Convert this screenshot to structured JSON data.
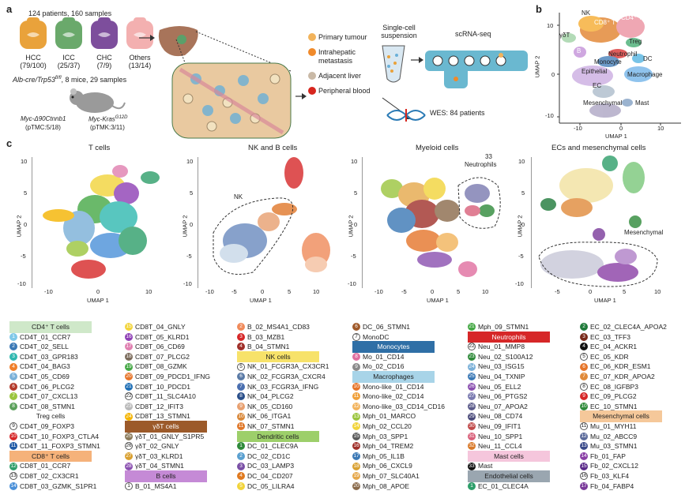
{
  "panel_letters": {
    "a": "a",
    "b": "b",
    "c": "c"
  },
  "panel_a": {
    "cohort": "124 patients, 160 samples",
    "organs": [
      {
        "name": "HCC",
        "count": "(79/100)",
        "color": "#e9a23b"
      },
      {
        "name": "ICC",
        "count": "(25/37)",
        "color": "#6aa96b"
      },
      {
        "name": "CHC",
        "count": "(7/9)",
        "color": "#7d4e9c"
      },
      {
        "name": "Others",
        "count": "(13/14)",
        "color": "#f3b0b0"
      }
    ],
    "mouse_model": "Alb-cre/Trp53",
    "mouse_model_sup": "fl/fl",
    "mouse_model_rest": ", 8 mice, 29 samples",
    "mouse_left": "Myc-Δ90Ctnnb1",
    "mouse_left_sub": "(pTMC:5/18)",
    "mouse_right": "Myc-Kras",
    "mouse_right_sup": "G12D",
    "mouse_right_sub": "(pTMK:3/11)",
    "sample_types": [
      {
        "label": "Primary tumour",
        "color": "#f2b35b"
      },
      {
        "label": "Intrahepatic",
        "label2": "metastasis",
        "color": "#f08a2a"
      },
      {
        "label": "Adjacent liver",
        "color": "#c9b9a6"
      },
      {
        "label": "Peripheral blood",
        "color": "#d7261e"
      }
    ],
    "suspension": "Single-cell",
    "suspension2": "suspension",
    "scrna": "scRNA-seq",
    "wes": "WES: 84 patients"
  },
  "panel_b": {
    "x_label": "UMAP 1",
    "y_label": "UMAP 2",
    "x_ticks": [
      "-10",
      "0",
      "10"
    ],
    "y_ticks": [
      "10",
      "0",
      "-10"
    ],
    "labels": [
      "NK",
      "CD8⁺ T",
      "CD4⁺ T",
      "γδT",
      "Treg",
      "B",
      "Neutrophil",
      "Monocyte",
      "DC",
      "Epithelial",
      "Macrophage",
      "EC",
      "Mesenchymal",
      "Mast"
    ]
  },
  "panel_c": [
    {
      "title": "T cells",
      "x_ticks": [
        "-10",
        "0",
        "10"
      ],
      "y_ticks": [
        "10",
        "5",
        "0",
        "-5",
        "-10"
      ]
    },
    {
      "title": "NK and B cells",
      "x_ticks": [
        "-10",
        "-5",
        "0",
        "5",
        "10"
      ],
      "y_ticks": [
        "10",
        "5",
        "0",
        "-5",
        "-10"
      ],
      "annot": "NK"
    },
    {
      "title": "Myeloid cells",
      "x_ticks": [
        "-10",
        "-5",
        "0",
        "5",
        "10"
      ],
      "y_ticks": [
        "10",
        "5",
        "0",
        "-5",
        "-10"
      ],
      "annot": "Neutrophils",
      "annot2": "33"
    },
    {
      "title": "ECs and mesenchymal cells",
      "x_ticks": [
        "-5",
        "0",
        "5",
        "10"
      ],
      "y_ticks": [
        "10",
        "5",
        "0",
        "-5",
        "-10"
      ],
      "annot": "Mesenchymal"
    }
  ],
  "umap_x": "UMAP 1",
  "umap_y": "UMAP 2",
  "legend_columns": [
    [
      {
        "head": "CD4⁺ T cells",
        "bg": "#cfe8c9"
      },
      {
        "n": "1",
        "t": "CD4T_01_CCR7",
        "c": "#7fc8e8"
      },
      {
        "n": "2",
        "t": "CD4T_02_SELL",
        "c": "#3a78b5"
      },
      {
        "n": "3",
        "t": "CD4T_03_GPR183",
        "c": "#2fb8b0"
      },
      {
        "n": "4",
        "t": "CD4T_04_BAG3",
        "c": "#f07f2a"
      },
      {
        "n": "5",
        "t": "CD4T_05_CD69",
        "c": "#7ab0d8"
      },
      {
        "n": "6",
        "t": "CD4T_06_PLCG2",
        "c": "#b33a2a"
      },
      {
        "n": "7",
        "t": "CD4T_07_CXCL13",
        "c": "#9bc53d"
      },
      {
        "n": "8",
        "t": "CD4T_08_STMN1",
        "c": "#5aa05a"
      },
      {
        "head": "Treg cells",
        "bg": "#ffffff"
      },
      {
        "n": "9",
        "t": "CD4T_09_FOXP3",
        "c": "#ffffff",
        "hollow": true
      },
      {
        "n": "10",
        "t": "CD4T_10_FOXP3_CTLA4",
        "c": "#d62728"
      },
      {
        "n": "11",
        "t": "CD4T_11_FOXP3_STMN1",
        "c": "#1f5aa6"
      },
      {
        "head": "CD8⁺ T cells",
        "bg": "#f5b27a"
      },
      {
        "n": "12",
        "t": "CD8T_01_CCR7",
        "c": "#2e9e6a"
      },
      {
        "n": "13",
        "t": "CD8T_02_CX3CR1",
        "c": "#ffffff",
        "hollow": true
      },
      {
        "n": "14",
        "t": "CD8T_03_GZMK_S1PR1",
        "c": "#4a90d9"
      }
    ],
    [
      {
        "n": "15",
        "t": "CD8T_04_GNLY",
        "c": "#f2d43a"
      },
      {
        "n": "16",
        "t": "CD8T_05_KLRD1",
        "c": "#8e3fb5"
      },
      {
        "n": "17",
        "t": "CD8T_06_CD69",
        "c": "#e07fb0"
      },
      {
        "n": "18",
        "t": "CD8T_07_PLCG2",
        "c": "#7a6a5a"
      },
      {
        "n": "19",
        "t": "CD8T_08_GZMK",
        "c": "#45a845"
      },
      {
        "n": "20",
        "t": "CD8T_09_PDCD1_IFNG",
        "c": "#e6752a"
      },
      {
        "n": "21",
        "t": "CD8T_10_PDCD1",
        "c": "#1f6fb5"
      },
      {
        "n": "22",
        "t": "CD8T_11_SLC4A10",
        "c": "#ffffff",
        "hollow": true
      },
      {
        "n": "23",
        "t": "CD8T_12_IFIT3",
        "c": "#b8b8b8"
      },
      {
        "n": "24",
        "t": "CD8T_13_STMN1",
        "c": "#f4b400"
      },
      {
        "head": "γδT cells",
        "bg": "#9c5a2a",
        "fg": "#ffffff"
      },
      {
        "n": "25",
        "t": "γδT_01_GNLY_S1PR5",
        "c": "#8a7a5a"
      },
      {
        "n": "26",
        "t": "γδT_02_GNLY",
        "c": "#ffffff",
        "hollow": true
      },
      {
        "n": "27",
        "t": "γδT_03_KLRD1",
        "c": "#d9a030"
      },
      {
        "n": "28",
        "t": "γδT_04_STMN1",
        "c": "#8a4fb0"
      },
      {
        "head": "B cells",
        "bg": "#c58ad6"
      },
      {
        "n": "1",
        "t": "B_01_MS4A1",
        "c": "#ffffff",
        "hollow": true
      }
    ],
    [
      {
        "n": "2",
        "t": "B_02_MS4A1_CD83",
        "c": "#f08a5a"
      },
      {
        "n": "3",
        "t": "B_03_MZB1",
        "c": "#d62728"
      },
      {
        "n": "4",
        "t": "B_04_STMN1",
        "c": "#a0302a"
      },
      {
        "head": "NK cells",
        "bg": "#f7e26a"
      },
      {
        "n": "5",
        "t": "NK_01_FCGR3A_CX3CR1",
        "c": "#ffffff",
        "hollow": true
      },
      {
        "n": "6",
        "t": "NK_02_FCGR3A_CXCR4",
        "c": "#5a7aa6"
      },
      {
        "n": "7",
        "t": "NK_03_FCGR3A_IFNG",
        "c": "#4a6fb0"
      },
      {
        "n": "8",
        "t": "NK_04_PLCG2",
        "c": "#2a4f8a"
      },
      {
        "n": "9",
        "t": "NK_05_CD160",
        "c": "#e8a070"
      },
      {
        "n": "10",
        "t": "NK_06_ITGA1",
        "c": "#d9883a"
      },
      {
        "n": "11",
        "t": "NK_07_STMN1",
        "c": "#e0782a"
      },
      {
        "head": "Dendritic cells",
        "bg": "#9dcf6a"
      },
      {
        "n": "1",
        "t": "DC_01_CLEC9A",
        "c": "#2f8a3a"
      },
      {
        "n": "2",
        "t": "DC_02_CD1C",
        "c": "#5aa0d0"
      },
      {
        "n": "3",
        "t": "DC_03_LAMP3",
        "c": "#7a4fa6"
      },
      {
        "n": "4",
        "t": "DC_04_CD207",
        "c": "#e07a20"
      },
      {
        "n": "5",
        "t": "DC_05_LILRA4",
        "c": "#f2d43a"
      }
    ],
    [
      {
        "n": "6",
        "t": "DC_06_STMN1",
        "c": "#a05a2a"
      },
      {
        "n": "7",
        "t": "MonoDC",
        "c": "#ffffff",
        "hollow": true
      },
      {
        "head": "Monocytes",
        "bg": "#2f6fa6",
        "fg": "#ffffff"
      },
      {
        "n": "8",
        "t": "Mo_01_CD14",
        "c": "#e06fa0"
      },
      {
        "n": "9",
        "t": "Mo_02_CD16",
        "c": "#8a8a8a"
      },
      {
        "head": "Macrophages",
        "bg": "#a8d4e8"
      },
      {
        "n": "10",
        "t": "Mono-like_01_CD14",
        "c": "#e6752a"
      },
      {
        "n": "11",
        "t": "Mono-like_02_CD14",
        "c": "#f0a03a"
      },
      {
        "n": "12",
        "t": "Mono-like_03_CD14_CD16",
        "c": "#f2b35b"
      },
      {
        "n": "13",
        "t": "Mph_01_MARCO",
        "c": "#9bc53d"
      },
      {
        "n": "14",
        "t": "Mph_02_CCL20",
        "c": "#f2d43a"
      },
      {
        "n": "15",
        "t": "Mph_03_SPP1",
        "c": "#5a5a5a"
      },
      {
        "n": "16",
        "t": "Mph_04_TREM2",
        "c": "#a0302a"
      },
      {
        "n": "17",
        "t": "Mph_05_IL1B",
        "c": "#3a78b5"
      },
      {
        "n": "18",
        "t": "Mph_06_CXCL9",
        "c": "#d9a030"
      },
      {
        "n": "19",
        "t": "Mph_07_SLC40A1",
        "c": "#e6a84a"
      },
      {
        "n": "20",
        "t": "Mph_08_APOE",
        "c": "#8a6a4a"
      }
    ],
    [
      {
        "n": "21",
        "t": "Mph_09_STMN1",
        "c": "#45a845"
      },
      {
        "head": "Neutrophils",
        "bg": "#d62728",
        "fg": "#ffffff"
      },
      {
        "n": "22",
        "t": "Neu_01_MMP8",
        "c": "#ffffff",
        "hollow": true
      },
      {
        "n": "23",
        "t": "Neu_02_S100A12",
        "c": "#2f8a3a"
      },
      {
        "n": "24",
        "t": "Neu_03_ISG15",
        "c": "#7ab0d8"
      },
      {
        "n": "25",
        "t": "Neu_04_TXNIP",
        "c": "#3a78b5"
      },
      {
        "n": "26",
        "t": "Neu_05_ELL2",
        "c": "#8a4fb0"
      },
      {
        "n": "27",
        "t": "Neu_06_PTGS2",
        "c": "#7a7ab0"
      },
      {
        "n": "28",
        "t": "Neu_07_APOA2",
        "c": "#5a5a8a"
      },
      {
        "n": "29",
        "t": "Neu_08_CD74",
        "c": "#4a4a7a"
      },
      {
        "n": "30",
        "t": "Neu_09_IFIT1",
        "c": "#c04a4a"
      },
      {
        "n": "31",
        "t": "Neu_10_SPP1",
        "c": "#d9607a"
      },
      {
        "n": "32",
        "t": "Neu_11_CCL4",
        "c": "#d97a2a"
      },
      {
        "head": "Mast cells",
        "bg": "#f5c6dc"
      },
      {
        "n": "33",
        "t": "Mast",
        "c": "#111111"
      },
      {
        "head": "Endothelial cells",
        "bg": "#9aa6b0"
      },
      {
        "n": "1",
        "t": "EC_01_CLEC4A",
        "c": "#2e9e6a"
      }
    ],
    [
      {
        "n": "2",
        "t": "EC_02_CLEC4A_APOA2",
        "c": "#1f7a3a"
      },
      {
        "n": "3",
        "t": "EC_03_TFF3",
        "c": "#7a2a1a"
      },
      {
        "n": "4",
        "t": "EC_04_ACKR1",
        "c": "#111111"
      },
      {
        "n": "5",
        "t": "EC_05_KDR",
        "c": "#ffffff",
        "hollow": true
      },
      {
        "n": "6",
        "t": "EC_06_KDR_ESM1",
        "c": "#e6752a"
      },
      {
        "n": "7",
        "t": "EC_07_KDR_APOA2",
        "c": "#e08a3a"
      },
      {
        "n": "8",
        "t": "EC_08_IGFBP3",
        "c": "#ffffff",
        "hollow": true
      },
      {
        "n": "9",
        "t": "EC_09_PLCG2",
        "c": "#d62728"
      },
      {
        "n": "10",
        "t": "EC_10_STMN1",
        "c": "#2f8a3a"
      },
      {
        "head": "Mesenchymal cells",
        "bg": "#f5c89a"
      },
      {
        "n": "11",
        "t": "Mu_01_MYH11",
        "c": "#ffffff",
        "hollow": true
      },
      {
        "n": "12",
        "t": "Mu_02_ABCC9",
        "c": "#5a6a9a"
      },
      {
        "n": "13",
        "t": "Mu_03_STMN1",
        "c": "#3a4a8a"
      },
      {
        "n": "14",
        "t": "Fb_01_FAP",
        "c": "#8a3fa6"
      },
      {
        "n": "15",
        "t": "Fb_02_CXCL12",
        "c": "#5a2a8a"
      },
      {
        "n": "16",
        "t": "Fb_03_KLF4",
        "c": "#ffffff",
        "hollow": true
      },
      {
        "n": "17",
        "t": "Fb_04_FABP4",
        "c": "#7a3a9a"
      }
    ]
  ]
}
